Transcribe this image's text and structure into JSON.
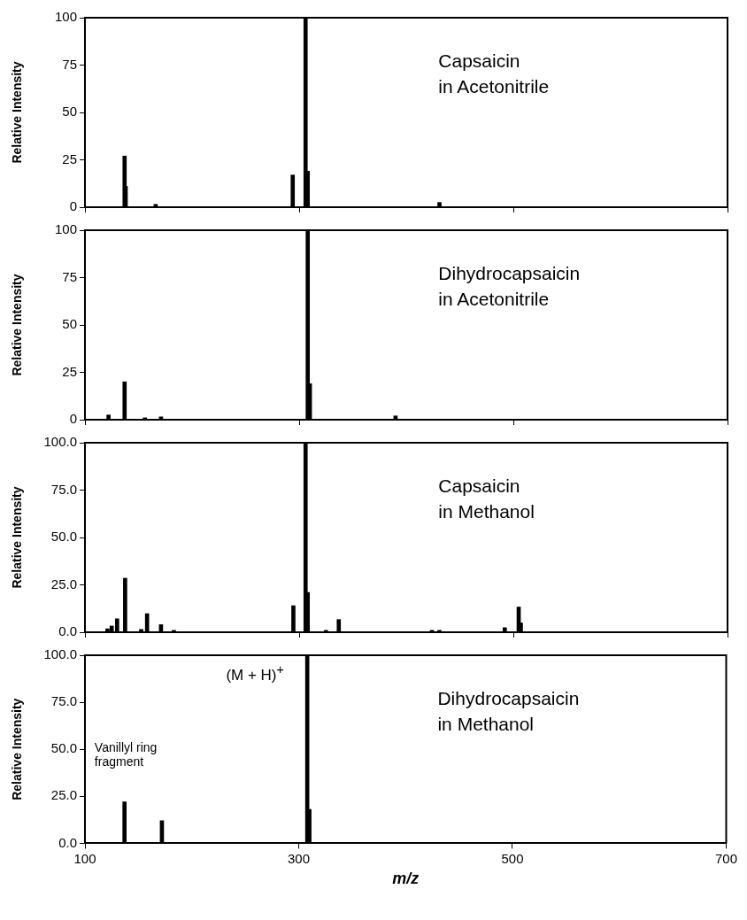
{
  "chart_data": [
    {
      "type": "bar",
      "title": "Capsaicin\nin Acetonitrile",
      "ylabel": "Relative Intensity",
      "color": "#000000",
      "x": [
        137,
        138,
        166,
        294,
        306,
        308,
        431
      ],
      "values": [
        27,
        11,
        1.5,
        17,
        100,
        19,
        2.5
      ],
      "xlim": [
        100,
        700
      ],
      "xticks": [
        100,
        300,
        500,
        700
      ],
      "ylim": [
        0,
        100
      ],
      "yticks": [
        0,
        25,
        50,
        75,
        100
      ],
      "tick_labels": "y"
    },
    {
      "type": "bar",
      "title": "Dihydrocapsaicin\nin Acetonitrile",
      "ylabel": "Relative Intensity",
      "color": "#000000",
      "x": [
        122,
        137,
        156,
        171,
        308,
        310,
        390
      ],
      "values": [
        2.5,
        20,
        1,
        1.5,
        100,
        19,
        2
      ],
      "xlim": [
        100,
        700
      ],
      "xticks": [
        100,
        300,
        500,
        700
      ],
      "ylim": [
        0,
        100
      ],
      "yticks": [
        0,
        25,
        50,
        75,
        100
      ],
      "tick_labels": "y"
    },
    {
      "type": "bar",
      "title": "Capsaicin\nin Methanol",
      "ylabel": "Relative Intensity",
      "color": "#000000",
      "x": [
        121,
        125,
        130,
        137.5,
        152.5,
        158,
        171,
        183,
        294.6,
        306,
        308,
        325,
        337,
        424,
        431,
        492,
        505,
        507
      ],
      "values": [
        1.8,
        3.3,
        7.1,
        28.5,
        1.5,
        9.8,
        4,
        1,
        14,
        100,
        21,
        1,
        6.7,
        1,
        1,
        2.4,
        13.3,
        4.9
      ],
      "xlim": [
        100,
        700
      ],
      "xticks": [
        100,
        300,
        500,
        700
      ],
      "ylim": [
        0,
        100
      ],
      "yticks": [
        {
          "value": 0,
          "label": "0.0"
        },
        {
          "value": 25,
          "label": "25.0"
        },
        {
          "value": 50,
          "label": "50.0"
        },
        {
          "value": 75,
          "label": "75.0"
        },
        {
          "value": 100,
          "label": "100.0"
        }
      ],
      "tick_labels": "y"
    },
    {
      "type": "bar",
      "title": "Dihydrocapsaicin\nin Methanol",
      "ylabel": "Relative Intensity",
      "xlabel": "m/z",
      "color": "#000000",
      "x": [
        137,
        172,
        308,
        310
      ],
      "values": [
        22,
        12,
        100,
        18
      ],
      "xlim": [
        100,
        700
      ],
      "xticks": [
        100,
        300,
        500,
        700
      ],
      "ylim": [
        0,
        100
      ],
      "yticks": [
        {
          "value": 0,
          "label": "0.0"
        },
        {
          "value": 25,
          "label": "25.0"
        },
        {
          "value": 50,
          "label": "50.0"
        },
        {
          "value": 75,
          "label": "75.0"
        },
        {
          "value": 100,
          "label": "100.0"
        }
      ],
      "annotations": [
        "(M + H)$^{+}$",
        "Vanillyl ring fragment"
      ]
    }
  ]
}
